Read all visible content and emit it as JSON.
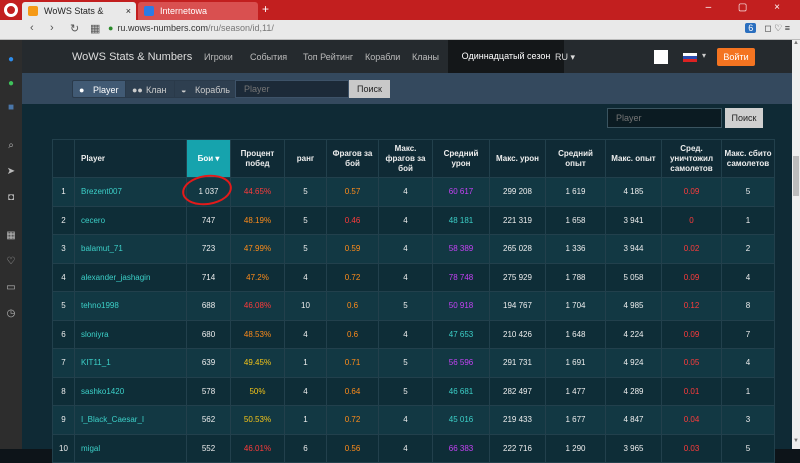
{
  "browser": {
    "tabs": [
      {
        "title": "WoWS Stats & Numbers"
      },
      {
        "title": "Internetowa wyszukiwarka"
      }
    ],
    "close_glyph": "×",
    "new_tab_glyph": "+",
    "window_controls": "– ▢ ×",
    "url_domain": "ru.wows-numbers.com",
    "url_path": "/ru/season/id,11/",
    "toolbar_badge": "6",
    "toolbar_icons": "◻ ♡ ≡"
  },
  "site": {
    "logo": "WoWS Stats & Numbers",
    "nav": [
      "Игроки",
      "События",
      "Топ Рейтинг",
      "Корабли",
      "Кланы"
    ],
    "active_nav": "Одиннадцатый сезон",
    "language": "RU ▾",
    "flag_caret": "▾",
    "login": "Войти"
  },
  "search": {
    "types": [
      "Player",
      "Клан",
      "Корабль"
    ],
    "placeholder": "Player",
    "button": "Поиск"
  },
  "table_search": {
    "placeholder": "Player",
    "button": "Поиск"
  },
  "table": {
    "headers": [
      "",
      "Player",
      "Бои",
      "Процент побед",
      "ранг",
      "Фрагов за бой",
      "Макс. фрагов за бой",
      "Средний урон",
      "Макс. урон",
      "Средний опыт",
      "Макс. опыт",
      "Сред. уничтожил самолетов",
      "Макс. сбито самолетов"
    ],
    "rows": [
      {
        "n": "1",
        "player": "Brezent007",
        "battles": "1 037",
        "winrate": "44.65%",
        "wr_color": "#ff3b3b",
        "rank": "5",
        "frags": "0.57",
        "fr_color": "#ff8c1a",
        "max_frags": "4",
        "avg_dmg": "60 617",
        "dmg_color": "#c542f5",
        "max_dmg": "299 208",
        "avg_xp": "1 619",
        "max_xp": "4 185",
        "avg_planes": "0.09",
        "pl_color": "#ff3b3b",
        "max_planes": "5"
      },
      {
        "n": "2",
        "player": "cecero",
        "battles": "747",
        "winrate": "48.19%",
        "wr_color": "#ff8c1a",
        "rank": "5",
        "frags": "0.46",
        "fr_color": "#ff3b3b",
        "max_frags": "4",
        "avg_dmg": "48 181",
        "dmg_color": "#3cd0c8",
        "max_dmg": "221 319",
        "avg_xp": "1 658",
        "max_xp": "3 941",
        "avg_planes": "0",
        "pl_color": "#ff3b3b",
        "max_planes": "1"
      },
      {
        "n": "3",
        "player": "balamut_71",
        "battles": "723",
        "winrate": "47.99%",
        "wr_color": "#ff8c1a",
        "rank": "5",
        "frags": "0.59",
        "fr_color": "#ff8c1a",
        "max_frags": "4",
        "avg_dmg": "58 389",
        "dmg_color": "#c542f5",
        "max_dmg": "265 028",
        "avg_xp": "1 336",
        "max_xp": "3 944",
        "avg_planes": "0.02",
        "pl_color": "#ff3b3b",
        "max_planes": "2"
      },
      {
        "n": "4",
        "player": "alexander_jashagin",
        "battles": "714",
        "winrate": "47.2%",
        "wr_color": "#ff8c1a",
        "rank": "4",
        "frags": "0.72",
        "fr_color": "#ff8c1a",
        "max_frags": "4",
        "avg_dmg": "78 748",
        "dmg_color": "#c542f5",
        "max_dmg": "275 929",
        "avg_xp": "1 788",
        "max_xp": "5 058",
        "avg_planes": "0.09",
        "pl_color": "#ff3b3b",
        "max_planes": "4"
      },
      {
        "n": "5",
        "player": "tehno1998",
        "battles": "688",
        "winrate": "46.08%",
        "wr_color": "#ff3b3b",
        "rank": "10",
        "frags": "0.6",
        "fr_color": "#ff8c1a",
        "max_frags": "5",
        "avg_dmg": "50 918",
        "dmg_color": "#c542f5",
        "max_dmg": "194 767",
        "avg_xp": "1 704",
        "max_xp": "4 985",
        "avg_planes": "0.12",
        "pl_color": "#ff3b3b",
        "max_planes": "8"
      },
      {
        "n": "6",
        "player": "sloniyra",
        "battles": "680",
        "winrate": "48.53%",
        "wr_color": "#ff8c1a",
        "rank": "4",
        "frags": "0.6",
        "fr_color": "#ff8c1a",
        "max_frags": "4",
        "avg_dmg": "47 653",
        "dmg_color": "#3cd0c8",
        "max_dmg": "210 426",
        "avg_xp": "1 648",
        "max_xp": "4 224",
        "avg_planes": "0.09",
        "pl_color": "#ff3b3b",
        "max_planes": "7"
      },
      {
        "n": "7",
        "player": "KIT11_1",
        "battles": "639",
        "winrate": "49.45%",
        "wr_color": "#f5c518",
        "rank": "1",
        "frags": "0.71",
        "fr_color": "#ff8c1a",
        "max_frags": "5",
        "avg_dmg": "56 596",
        "dmg_color": "#c542f5",
        "max_dmg": "291 731",
        "avg_xp": "1 691",
        "max_xp": "4 924",
        "avg_planes": "0.05",
        "pl_color": "#ff3b3b",
        "max_planes": "4"
      },
      {
        "n": "8",
        "player": "sashko1420",
        "battles": "578",
        "winrate": "50%",
        "wr_color": "#f5c518",
        "rank": "4",
        "frags": "0.64",
        "fr_color": "#ff8c1a",
        "max_frags": "5",
        "avg_dmg": "46 681",
        "dmg_color": "#3cd0c8",
        "max_dmg": "282 497",
        "avg_xp": "1 477",
        "max_xp": "4 289",
        "avg_planes": "0.01",
        "pl_color": "#ff3b3b",
        "max_planes": "1"
      },
      {
        "n": "9",
        "player": "I_Black_Caesar_I",
        "battles": "562",
        "winrate": "50.53%",
        "wr_color": "#f5c518",
        "rank": "1",
        "frags": "0.72",
        "fr_color": "#ff8c1a",
        "max_frags": "4",
        "avg_dmg": "45 016",
        "dmg_color": "#3cd0c8",
        "max_dmg": "219 433",
        "avg_xp": "1 677",
        "max_xp": "4 847",
        "avg_planes": "0.04",
        "pl_color": "#ff3b3b",
        "max_planes": "3"
      },
      {
        "n": "10",
        "player": "migal",
        "battles": "552",
        "winrate": "46.01%",
        "wr_color": "#ff3b3b",
        "rank": "6",
        "frags": "0.56",
        "fr_color": "#ff8c1a",
        "max_frags": "4",
        "avg_dmg": "66 383",
        "dmg_color": "#c542f5",
        "max_dmg": "222 716",
        "avg_xp": "1 290",
        "max_xp": "3 965",
        "avg_planes": "0.03",
        "pl_color": "#ff3b3b",
        "max_planes": "5"
      }
    ]
  }
}
